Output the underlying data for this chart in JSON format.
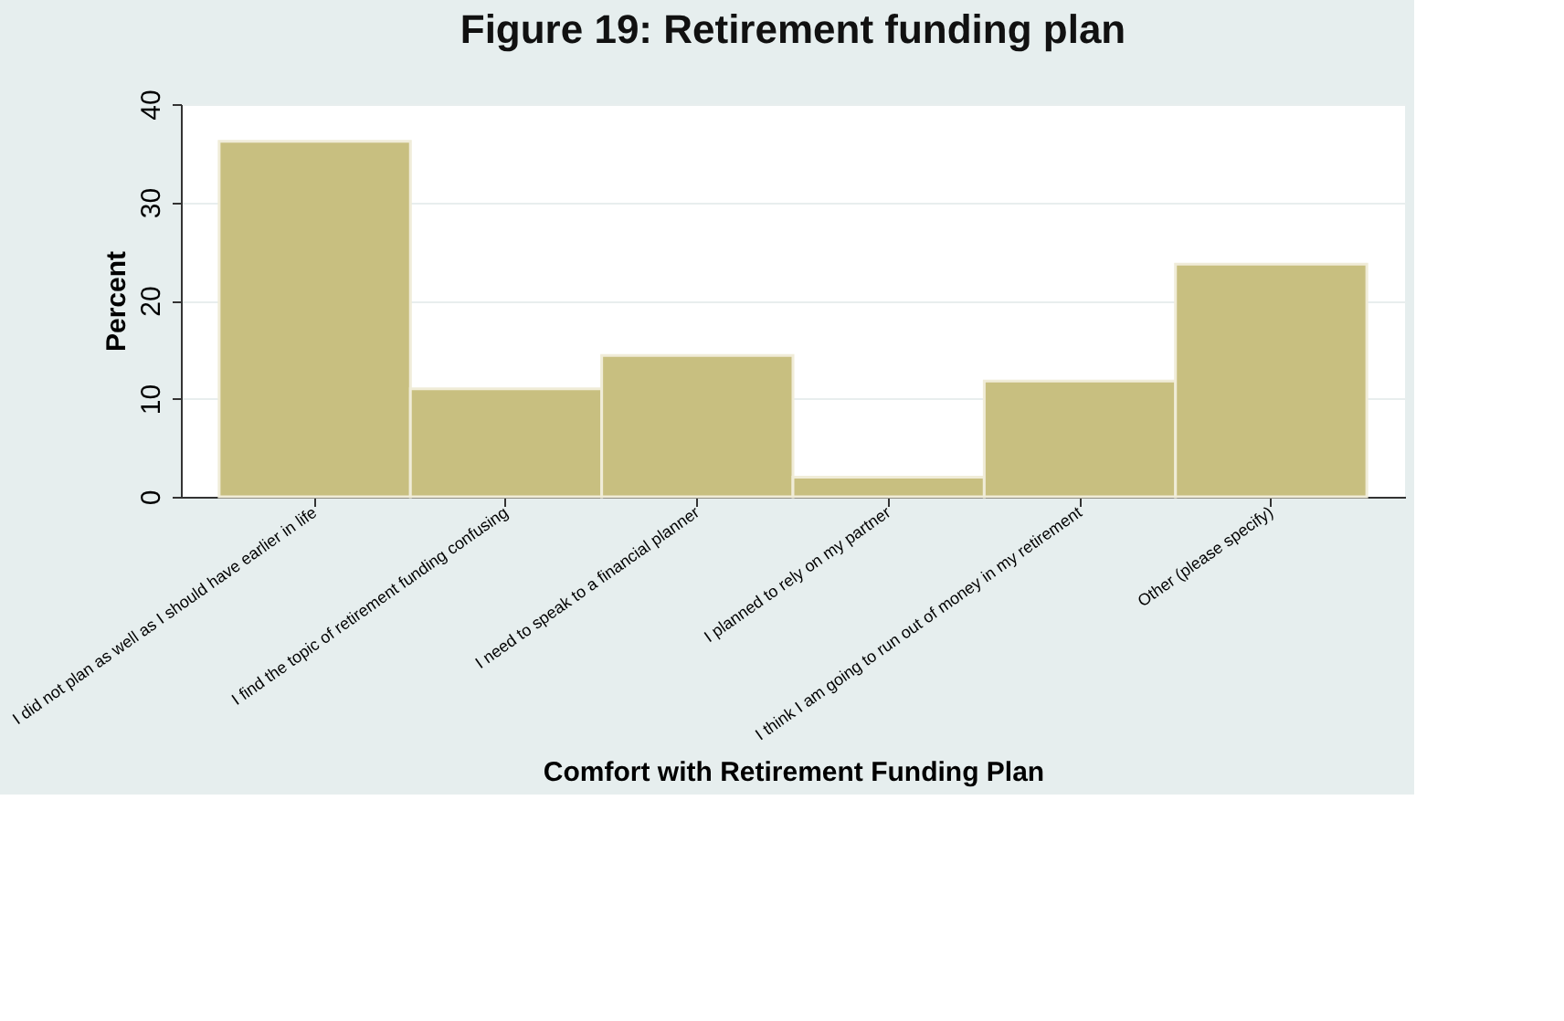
{
  "chart_data": {
    "type": "bar",
    "title": "Figure 19: Retirement funding plan",
    "categories": [
      "I did not plan as well as I should have earlier in life",
      "I find the topic of retirement funding confusing",
      "I need to speak to a financial planner",
      "I planned to rely on my partner",
      "I think I am going to run out of money in my retirement",
      "Other (please specify)"
    ],
    "values": [
      36.2,
      11.0,
      14.4,
      2.0,
      11.8,
      23.7
    ],
    "color": "#c8bf80",
    "xlabel": "Comfort with Retirement Funding Plan",
    "ylabel": "Percent",
    "ylim": [
      0,
      40
    ],
    "yticks": [
      0,
      10,
      20,
      30,
      40
    ],
    "grid": "y"
  }
}
